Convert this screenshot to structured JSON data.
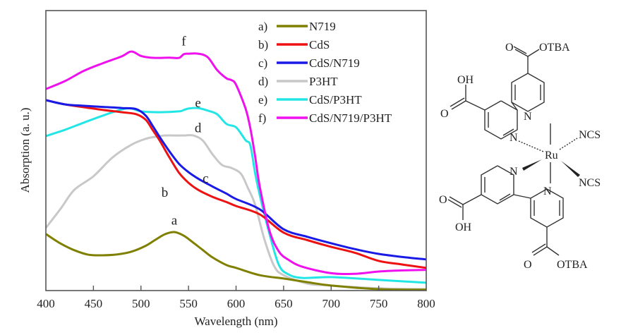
{
  "chart_data": {
    "type": "line",
    "title": "",
    "xlabel": "Wavelength (nm)",
    "ylabel": "Absorption (a. u.)",
    "xlim": [
      400,
      800
    ],
    "ylim": [
      0,
      1
    ],
    "xticks": [
      400,
      450,
      500,
      550,
      600,
      650,
      700,
      750,
      800
    ],
    "xtick_labels": [
      "400",
      "450",
      "500",
      "550",
      "600",
      "650",
      "700",
      "750",
      "800"
    ],
    "yticks_shown": false,
    "grid": false,
    "legend_placement": "top-right",
    "series": [
      {
        "id": "a",
        "legend_prefix": "a)",
        "name": "N719",
        "color": "#808000",
        "curve_label": "a",
        "x": [
          400,
          415,
          430,
          445,
          460,
          475,
          490,
          505,
          515,
          525,
          535,
          545,
          555,
          565,
          575,
          590,
          600,
          625,
          650,
          675,
          700,
          750,
          800
        ],
        "y": [
          0.202,
          0.169,
          0.144,
          0.128,
          0.126,
          0.129,
          0.139,
          0.16,
          0.181,
          0.201,
          0.209,
          0.196,
          0.171,
          0.145,
          0.119,
          0.091,
          0.081,
          0.055,
          0.043,
          0.03,
          0.018,
          0.005,
          0.003
        ],
        "label_at": [
          535,
          0.235
        ]
      },
      {
        "id": "b",
        "legend_prefix": "b)",
        "name": "CdS",
        "color": "#ee1111",
        "curve_label": "b",
        "x": [
          400,
          420,
          440,
          460,
          480,
          495,
          505,
          512,
          520,
          530,
          540,
          550,
          560,
          575,
          590,
          600,
          625,
          650,
          675,
          700,
          725,
          750,
          775,
          800
        ],
        "y": [
          0.68,
          0.665,
          0.655,
          0.645,
          0.637,
          0.63,
          0.61,
          0.575,
          0.534,
          0.475,
          0.421,
          0.385,
          0.36,
          0.335,
          0.316,
          0.302,
          0.272,
          0.207,
          0.18,
          0.156,
          0.135,
          0.106,
          0.093,
          0.081
        ],
        "label_at": [
          525,
          0.335
        ]
      },
      {
        "id": "c",
        "legend_prefix": "c)",
        "name": "CdS/N719",
        "color": "#1a1ae6",
        "curve_label": "c",
        "x": [
          400,
          420,
          440,
          460,
          480,
          495,
          505,
          512,
          520,
          530,
          540,
          550,
          560,
          575,
          590,
          600,
          625,
          650,
          675,
          700,
          725,
          750,
          775,
          800
        ],
        "y": [
          0.68,
          0.665,
          0.66,
          0.656,
          0.652,
          0.648,
          0.625,
          0.59,
          0.547,
          0.497,
          0.453,
          0.423,
          0.4,
          0.372,
          0.346,
          0.327,
          0.29,
          0.219,
          0.192,
          0.169,
          0.148,
          0.131,
          0.12,
          0.111
        ],
        "label_at": [
          568,
          0.385
        ]
      },
      {
        "id": "d",
        "legend_prefix": "d)",
        "name": "P3HT",
        "color": "#c8c8c8",
        "curve_label": "d",
        "x": [
          400,
          415,
          430,
          450,
          470,
          490,
          505,
          515,
          525,
          535,
          545,
          555,
          565,
          575,
          585,
          595,
          605,
          612,
          620,
          630,
          640,
          650,
          675,
          700,
          750,
          800
        ],
        "y": [
          0.224,
          0.29,
          0.36,
          0.408,
          0.475,
          0.521,
          0.542,
          0.549,
          0.554,
          0.554,
          0.554,
          0.554,
          0.536,
          0.488,
          0.449,
          0.438,
          0.418,
          0.37,
          0.307,
          0.181,
          0.088,
          0.055,
          0.025,
          0.018,
          0.008,
          0.005
        ],
        "label_at": [
          560,
          0.565
        ]
      },
      {
        "id": "e",
        "legend_prefix": "e)",
        "name": "CdS/P3HT",
        "color": "#22e6e6",
        "curve_label": "e",
        "x": [
          400,
          420,
          440,
          460,
          480,
          490,
          500,
          520,
          540,
          545,
          550,
          560,
          570,
          580,
          590,
          600,
          610,
          615,
          620,
          625,
          635,
          645,
          655,
          670,
          700,
          750,
          800
        ],
        "y": [
          0.552,
          0.574,
          0.6,
          0.625,
          0.647,
          0.65,
          0.64,
          0.637,
          0.64,
          0.645,
          0.65,
          0.652,
          0.643,
          0.63,
          0.595,
          0.583,
          0.537,
          0.519,
          0.42,
          0.34,
          0.204,
          0.092,
          0.058,
          0.045,
          0.048,
          0.038,
          0.028
        ],
        "label_at": [
          560,
          0.655
        ]
      },
      {
        "id": "f",
        "legend_prefix": "f)",
        "name": "CdS/N719/P3HT",
        "color": "#ee11ee",
        "curve_label": "f",
        "x": [
          400,
          420,
          440,
          460,
          480,
          490,
          500,
          510,
          520,
          530,
          540,
          545,
          550,
          560,
          570,
          580,
          590,
          595,
          600,
          610,
          615,
          620,
          625,
          635,
          645,
          655,
          670,
          700,
          725,
          750,
          775,
          800
        ],
        "y": [
          0.72,
          0.748,
          0.785,
          0.812,
          0.837,
          0.854,
          0.838,
          0.832,
          0.831,
          0.832,
          0.831,
          0.844,
          0.846,
          0.846,
          0.834,
          0.788,
          0.758,
          0.752,
          0.735,
          0.65,
          0.58,
          0.48,
          0.37,
          0.215,
          0.14,
          0.11,
          0.085,
          0.062,
          0.06,
          0.068,
          0.072,
          0.074
        ],
        "label_at": [
          545,
          0.875
        ]
      }
    ]
  },
  "molecule": {
    "name": "N719 dye structure",
    "labels": {
      "otba_top": "OTBA",
      "o_top": "O",
      "oh_top": "OH",
      "o_left_top": "O",
      "n1": "N",
      "n2": "N",
      "ru": "Ru",
      "ncs1": "NCS",
      "ncs2": "NCS",
      "n3": "N",
      "n4": "N",
      "o_left_bot": "O",
      "oh_bot": "OH",
      "o_bot": "O",
      "otba_bot": "OTBA"
    }
  }
}
